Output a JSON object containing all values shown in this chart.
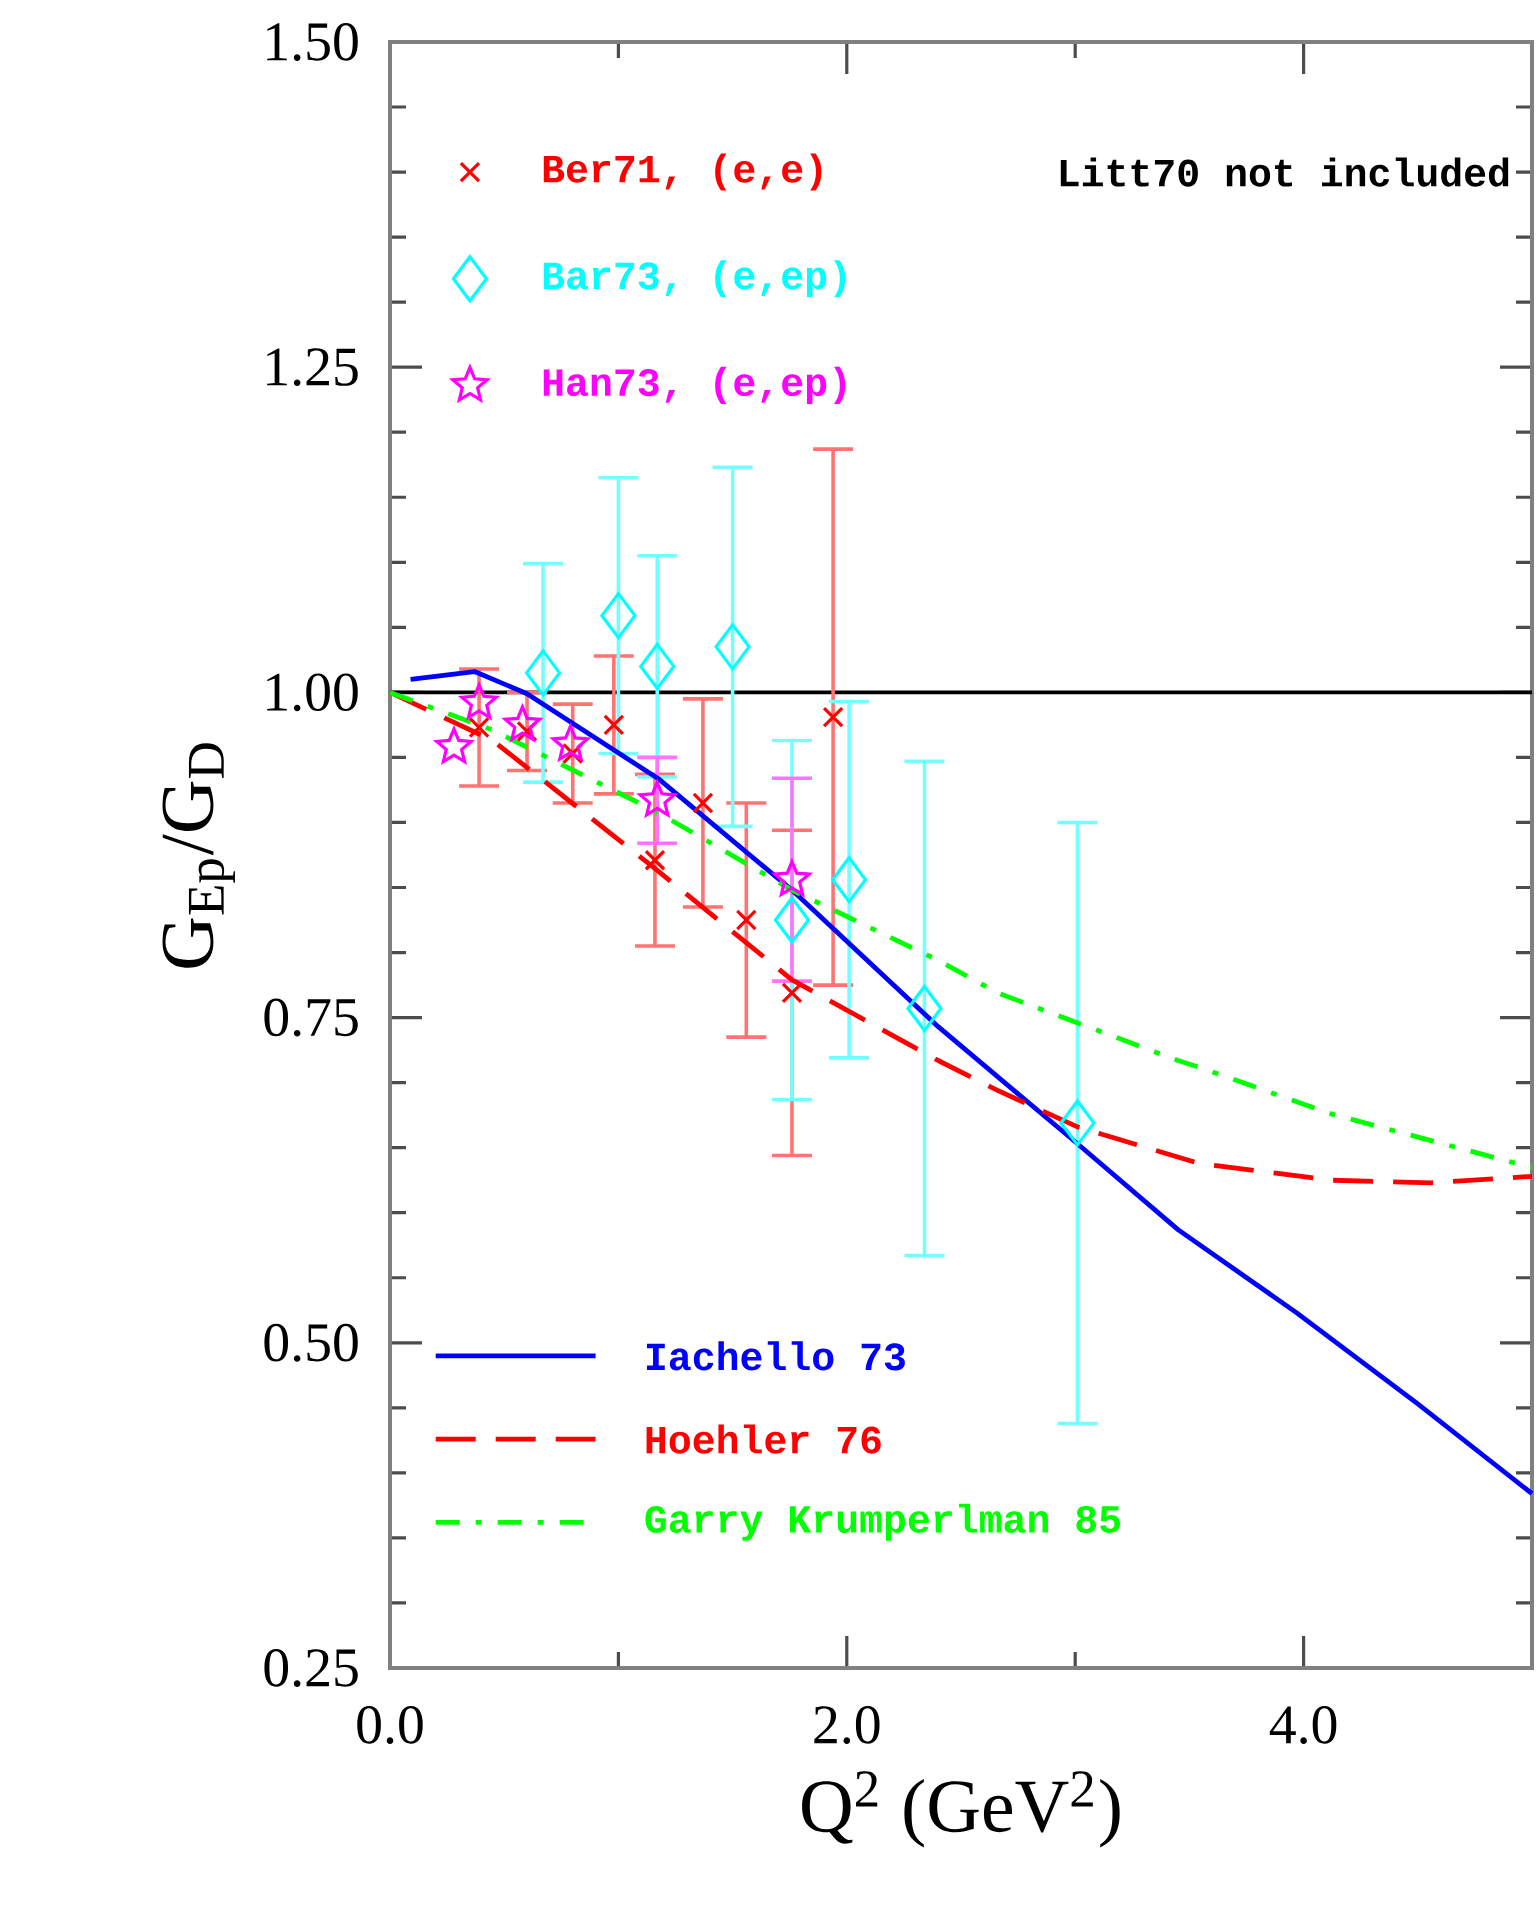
{
  "chart_data": {
    "type": "scatter",
    "xlabel": "Q$^{2}$ (GeV$^{2}$)",
    "ylabel": "G$_{Ep}$/G$_{D}$",
    "xlim": [
      0,
      5
    ],
    "ylim": [
      0.25,
      1.5
    ],
    "xticks": [
      {
        "value": 0,
        "label": "0.0"
      },
      {
        "value": 2,
        "label": "2.0"
      },
      {
        "value": 4,
        "label": "4.0"
      }
    ],
    "yticks": [
      {
        "value": 0.25,
        "label": "0.25"
      },
      {
        "value": 0.5,
        "label": "0.50"
      },
      {
        "value": 0.75,
        "label": "0.75"
      },
      {
        "value": 1,
        "label": "1.00"
      },
      {
        "value": 1.25,
        "label": "1.25"
      },
      {
        "value": 1.5,
        "label": "1.50"
      }
    ],
    "legend": "left",
    "annotations": [
      "Litt70 not included"
    ],
    "ref_lines": [
      {
        "axis": "y",
        "value": 1,
        "color": "#000000"
      }
    ],
    "series": [
      {
        "name": "Ber71, (e,e)",
        "marker": "cross",
        "color": "#ff0000",
        "x": [
          0.39,
          0.6,
          0.8,
          0.98,
          1.16,
          1.37,
          1.56,
          1.76,
          1.94
        ],
        "values": [
          0.973,
          0.97,
          0.953,
          0.975,
          0.871,
          0.915,
          0.825,
          0.769,
          0.981
        ],
        "errors": [
          0.045,
          0.03,
          0.038,
          0.053,
          0.066,
          0.08,
          0.09,
          0.125,
          0.206
        ]
      },
      {
        "name": "Bar73, (e,ep)",
        "marker": "diamond",
        "color": "#00ffff",
        "x": [
          0.67,
          1.0,
          1.17,
          1.5,
          1.76,
          2.01,
          2.34,
          3.01
        ],
        "values": [
          1.015,
          1.059,
          1.02,
          1.035,
          0.825,
          0.856,
          0.757,
          0.669
        ],
        "errors": [
          0.084,
          0.106,
          0.085,
          0.138,
          0.138,
          0.137,
          0.19,
          0.231
        ]
      },
      {
        "name": "Han73, (e,ep)",
        "marker": "star",
        "color": "#ff00ff",
        "x": [
          0.28,
          0.39,
          0.58,
          0.79,
          1.17,
          1.76
        ],
        "values": [
          0.958,
          0.992,
          0.975,
          0.96,
          0.917,
          0.856
        ],
        "errors": [
          null,
          null,
          null,
          null,
          0.033,
          0.078
        ]
      },
      {
        "name": "Iachello 73",
        "type": "line",
        "line_style": "solid",
        "color": "#0000ff",
        "x": [
          0.09,
          0.37,
          0.6,
          1.18,
          1.76,
          2.4,
          3.01,
          3.45,
          3.97,
          4.5,
          5.0
        ],
        "values": [
          1.01,
          1.016,
          0.999,
          0.933,
          0.848,
          0.743,
          0.653,
          0.587,
          0.523,
          0.453,
          0.384
        ]
      },
      {
        "name": "Hoehler 76",
        "type": "line",
        "line_style": "dashed",
        "color": "#ff0000",
        "x": [
          0,
          0.45,
          1.15,
          1.76,
          2.4,
          2.66,
          3.01,
          3.54,
          4.12,
          4.56,
          5.0
        ],
        "values": [
          1.0,
          0.963,
          0.866,
          0.779,
          0.717,
          0.694,
          0.666,
          0.638,
          0.625,
          0.623,
          0.628
        ]
      },
      {
        "name": "Garry Krumperlman 85",
        "type": "line",
        "line_style": "dashdot",
        "color": "#00ff00",
        "x": [
          0,
          0.45,
          1.18,
          1.76,
          2.4,
          2.66,
          3.45,
          3.54,
          4.12,
          4.93,
          5.0
        ],
        "values": [
          1.0,
          0.971,
          0.907,
          0.848,
          0.794,
          0.769,
          0.717,
          0.712,
          0.676,
          0.638,
          0.635
        ]
      }
    ]
  }
}
